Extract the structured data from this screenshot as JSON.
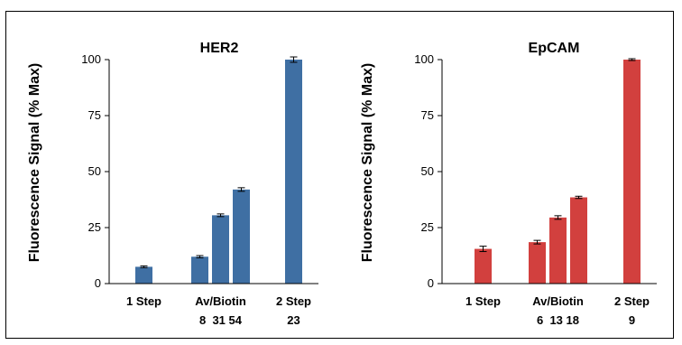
{
  "chart_data": [
    {
      "type": "bar",
      "title": "HER2",
      "ylabel": "Fluorescence Signal (% Max)",
      "ylim": [
        0,
        100
      ],
      "yticks": [
        0,
        25,
        50,
        75,
        100
      ],
      "groups": [
        {
          "label": "1 Step",
          "sublabel": "",
          "values": [
            7.5
          ],
          "errors": [
            0.4
          ]
        },
        {
          "label": "Av/Biotin",
          "sublabel": "8  31 54",
          "values": [
            12,
            30.5,
            42
          ],
          "errors": [
            0.5,
            0.6,
            0.8
          ]
        },
        {
          "label": "2 Step",
          "sublabel": "23",
          "values": [
            100
          ],
          "errors": [
            1.2
          ]
        }
      ],
      "color": "#3f6fa3"
    },
    {
      "type": "bar",
      "title": "EpCAM",
      "ylabel": "Fluorescence Signal (% Max)",
      "ylim": [
        0,
        100
      ],
      "yticks": [
        0,
        25,
        50,
        75,
        100
      ],
      "groups": [
        {
          "label": "1 Step",
          "sublabel": "",
          "values": [
            15.5
          ],
          "errors": [
            1.2
          ]
        },
        {
          "label": "Av/Biotin",
          "sublabel": "6  13 18",
          "values": [
            18.5,
            29.5,
            38.5
          ],
          "errors": [
            0.8,
            0.8,
            0.5
          ]
        },
        {
          "label": "2 Step",
          "sublabel": "9",
          "values": [
            100
          ],
          "errors": [
            0.4
          ]
        }
      ],
      "color": "#d2403e"
    }
  ]
}
